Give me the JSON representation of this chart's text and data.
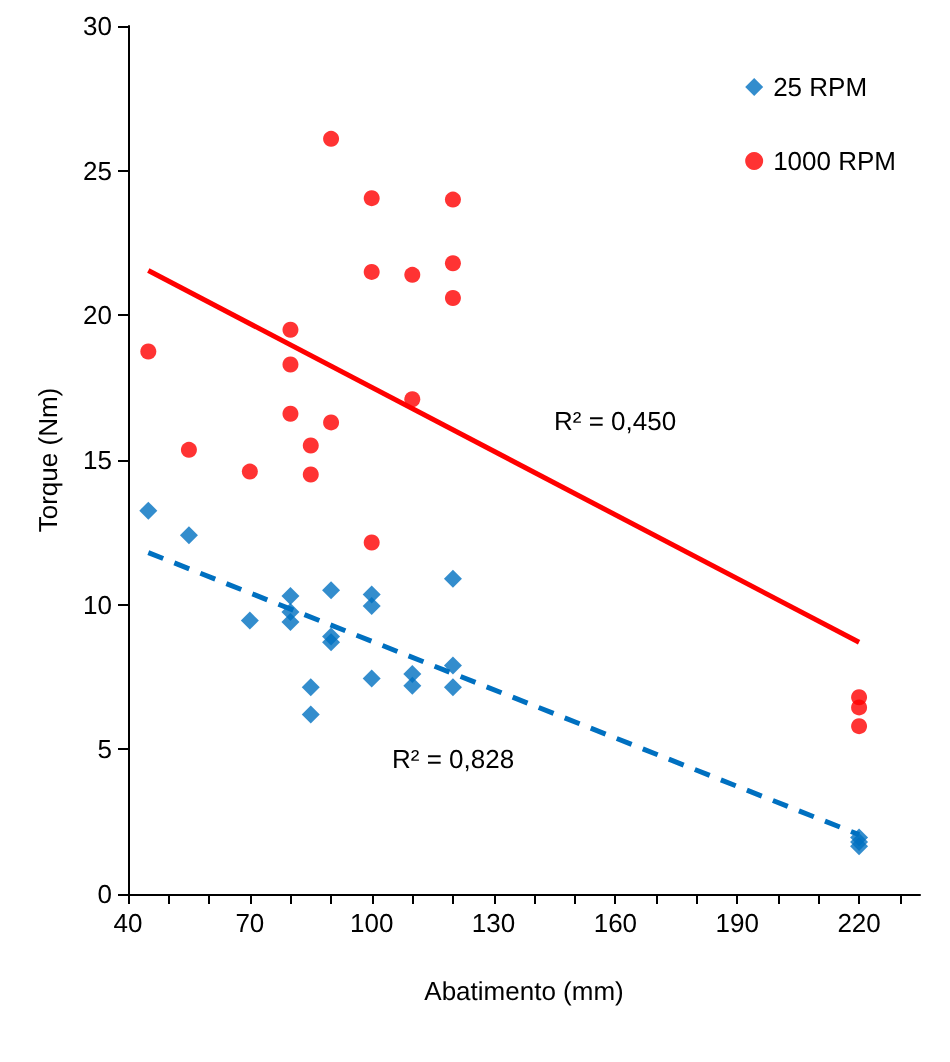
{
  "chart_data": {
    "type": "scatter",
    "xlabel": "Abatimento (mm)",
    "ylabel": "Torque (Nm)",
    "xlim": [
      40,
      235
    ],
    "xticks": [
      40,
      {
        "value": 50,
        "label": null
      },
      {
        "value": 60,
        "label": null
      },
      70,
      {
        "value": 80,
        "label": null
      },
      {
        "value": 90,
        "label": null
      },
      100,
      {
        "value": 110,
        "label": null
      },
      {
        "value": 120,
        "label": null
      },
      130,
      {
        "value": 140,
        "label": null
      },
      {
        "value": 150,
        "label": null
      },
      160,
      {
        "value": 170,
        "label": null
      },
      {
        "value": 180,
        "label": null
      },
      190,
      {
        "value": 200,
        "label": null
      },
      {
        "value": 210,
        "label": null
      },
      220,
      {
        "value": 230,
        "label": null
      }
    ],
    "ylim": [
      0,
      30
    ],
    "yticks": [
      0,
      5,
      10,
      15,
      20,
      25,
      30
    ],
    "grid": false,
    "legend": "top right",
    "series": [
      {
        "name": "25 RPM",
        "color": "#0070c0",
        "marker": "diamond",
        "x": [
          45,
          55,
          70,
          80,
          80,
          80,
          85,
          85,
          90,
          90,
          90,
          100,
          100,
          100,
          110,
          110,
          120,
          120,
          120,
          220,
          220,
          220
        ],
        "values": [
          13.25,
          12.4,
          9.45,
          10.3,
          9.75,
          9.4,
          7.15,
          6.2,
          10.5,
          8.9,
          8.7,
          10.35,
          9.95,
          7.45,
          7.6,
          7.2,
          10.9,
          7.9,
          7.15,
          1.95,
          1.8,
          1.65
        ]
      },
      {
        "name": "1000 RPM",
        "color": "#ff0000",
        "marker": "circle",
        "x": [
          45,
          55,
          70,
          80,
          80,
          80,
          85,
          85,
          90,
          90,
          100,
          100,
          100,
          110,
          110,
          120,
          120,
          120,
          220,
          220,
          220
        ],
        "values": [
          18.75,
          15.35,
          14.6,
          19.5,
          18.3,
          16.6,
          15.5,
          14.5,
          26.1,
          16.3,
          24.05,
          21.5,
          12.15,
          21.4,
          17.1,
          24.0,
          21.8,
          20.6,
          6.8,
          6.45,
          5.8
        ]
      },
      {
        "type": "line",
        "color": "#0070c0",
        "marker": "none",
        "line_style": "dashed",
        "x": [
          45,
          220
        ],
        "values": [
          11.8,
          2.05
        ]
      },
      {
        "type": "line",
        "color": "#ff0000",
        "marker": "none",
        "line_style": "solid",
        "x": [
          45,
          220
        ],
        "values": [
          21.55,
          8.7
        ]
      }
    ],
    "annotations": [
      "R² = 0,450",
      "R² = 0,828"
    ]
  }
}
